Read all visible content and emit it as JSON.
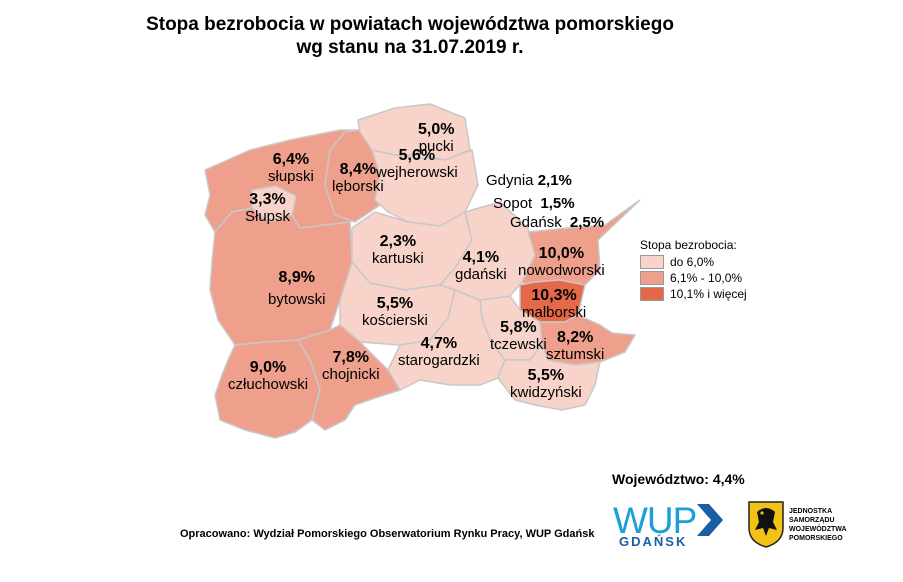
{
  "title": {
    "line1": "Stopa bezrobocia w powiatach województwa pomorskiego",
    "line2": "wg stanu na 31.07.2019 r."
  },
  "colors": {
    "low": "#f7d3c9",
    "mid": "#eea08c",
    "high": "#e3694a",
    "border": "#c8c8c8"
  },
  "districts": [
    {
      "id": "slupski",
      "name": "słupski",
      "value": "6,4%",
      "class": "mid"
    },
    {
      "id": "slupsk",
      "name": "Słupsk",
      "value": "3,3%",
      "class": "low"
    },
    {
      "id": "leborski",
      "name": "lęborski",
      "value": "8,4%",
      "class": "mid"
    },
    {
      "id": "pucki",
      "name": "pucki",
      "value": "5,0%",
      "class": "low"
    },
    {
      "id": "wejherowski",
      "name": "wejherowski",
      "value": "5,6%",
      "class": "low"
    },
    {
      "id": "bytowski",
      "name": "bytowski",
      "value": "8,9%",
      "class": "mid"
    },
    {
      "id": "kartuski",
      "name": "kartuski",
      "value": "2,3%",
      "class": "low"
    },
    {
      "id": "gdanski",
      "name": "gdański",
      "value": "4,1%",
      "class": "low"
    },
    {
      "id": "nowodworski",
      "name": "nowodworski",
      "value": "10,0%",
      "class": "mid"
    },
    {
      "id": "malborski",
      "name": "malborski",
      "value": "10,3%",
      "class": "high"
    },
    {
      "id": "koscierski",
      "name": "kościerski",
      "value": "5,5%",
      "class": "low"
    },
    {
      "id": "tczewski",
      "name": "tczewski",
      "value": "5,8%",
      "class": "low"
    },
    {
      "id": "sztumski",
      "name": "sztumski",
      "value": "8,2%",
      "class": "mid"
    },
    {
      "id": "starogardzki",
      "name": "starogardzki",
      "value": "4,7%",
      "class": "low"
    },
    {
      "id": "kwidzynski",
      "name": "kwidzyński",
      "value": "5,5%",
      "class": "low"
    },
    {
      "id": "czluchowski",
      "name": "człuchowski",
      "value": "9,0%",
      "class": "mid"
    },
    {
      "id": "chojnicki",
      "name": "chojnicki",
      "value": "7,8%",
      "class": "mid"
    }
  ],
  "cities": [
    {
      "name": "Gdynia",
      "value": "2,1%"
    },
    {
      "name": "Sopot",
      "value": "1,5%"
    },
    {
      "name": "Gdańsk",
      "value": "2,5%"
    }
  ],
  "legend": {
    "title": "Stopa bezrobocia:",
    "items": [
      {
        "label": "do 6,0%",
        "class": "low"
      },
      {
        "label": "6,1% - 10,0%",
        "class": "mid"
      },
      {
        "label": "10,1% i więcej",
        "class": "high"
      }
    ]
  },
  "voivodeship": "Województwo: 4,4%",
  "source": "Opracowano: Wydział Pomorskiego Obserwatorium Rynku Pracy, WUP Gdańsk",
  "logos": {
    "wup_main": "WUP",
    "wup_sub": "GDAŃSK",
    "jst_lines": [
      "JEDNOSTKA",
      "SAMORZĄDU",
      "WOJEWÓDZTWA",
      "POMORSKIEGO"
    ]
  }
}
